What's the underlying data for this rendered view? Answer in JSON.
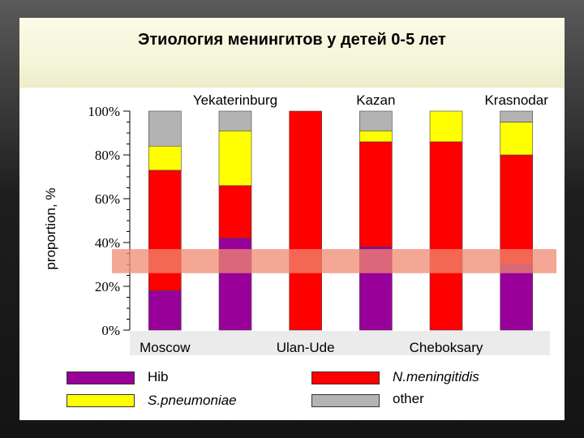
{
  "slide": {
    "title": "Этиология менингитов у детей 0-5 лет"
  },
  "colors": {
    "Hib": "#990099",
    "S.pneumoniae": "#ffff00",
    "N.meningitidis": "#ff0000",
    "other": "#b3b3b3",
    "highlight_band": "#f08a70"
  },
  "chart_data": {
    "type": "bar",
    "stacked": true,
    "ylabel": "proportion, %",
    "ylim": [
      0,
      100
    ],
    "yticks": [
      "0%",
      "20%",
      "40%",
      "60%",
      "80%",
      "100%"
    ],
    "categories": [
      "Moscow",
      "Yekaterinburg",
      "Ulan-Ude",
      "Kazan",
      "Cheboksary",
      "Krasnodar"
    ],
    "category_label_position": [
      "bottom",
      "top",
      "bottom",
      "top",
      "bottom",
      "top"
    ],
    "series": [
      {
        "name": "Hib",
        "values": [
          18,
          42,
          0,
          38,
          0,
          30
        ]
      },
      {
        "name": "N.meningitidis",
        "values": [
          55,
          24,
          100,
          48,
          86,
          50
        ]
      },
      {
        "name": "S.pneumoniae",
        "values": [
          11,
          25,
          0,
          5,
          14,
          15
        ]
      },
      {
        "name": "other",
        "values": [
          16,
          9,
          0,
          9,
          0,
          5
        ]
      }
    ],
    "highlight_band_range": [
      26,
      37
    ]
  },
  "legend": [
    {
      "name": "Hib",
      "label": "Hib",
      "italic": false
    },
    {
      "name": "N.meningitidis",
      "label": "N.meningitidis",
      "italic": true
    },
    {
      "name": "S.pneumoniae",
      "label": "S.pneumoniae",
      "italic": true
    },
    {
      "name": "other",
      "label": "other",
      "italic": false
    }
  ]
}
